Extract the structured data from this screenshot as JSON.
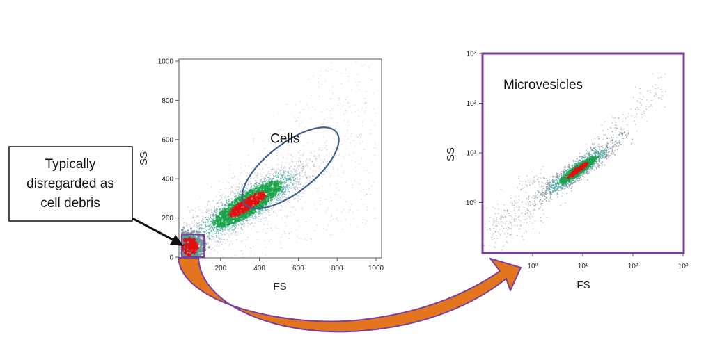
{
  "colors": {
    "gate_ellipse": "#3f5f8f",
    "gate_rect": "#7b3fa0",
    "frame_purple": "#7b3fa0",
    "arrow_fill": "#e2751e",
    "arrow_outline": "#7b3fa0",
    "density_low": "#7f8f9f",
    "density_mid": "#17a34a",
    "density_high": "#e00f0f"
  },
  "callout": {
    "lines": [
      "Typically",
      "disregarded as",
      "cell debris"
    ]
  },
  "chart_data": [
    {
      "type": "scatter",
      "title": "",
      "xlabel": "FS",
      "ylabel": "SS",
      "xlim": [
        0,
        1000
      ],
      "ylim": [
        0,
        1000
      ],
      "xticks": [
        "0",
        "200",
        "400",
        "600",
        "800",
        "1000"
      ],
      "yticks": [
        "0",
        "200",
        "400",
        "600",
        "800",
        "1000"
      ],
      "grid": false,
      "gates": [
        {
          "type": "ellipse",
          "label": "Cells",
          "center": [
            560,
            455
          ],
          "semi_axes": [
            300,
            125
          ],
          "rotation_deg": 38
        },
        {
          "type": "rectangle",
          "label": "",
          "x": [
            0,
            115
          ],
          "y": [
            0,
            115
          ]
        }
      ],
      "density_clusters": [
        {
          "center": [
            340,
            270
          ],
          "spread": [
            130,
            85
          ],
          "peak_color": "red"
        },
        {
          "center": [
            40,
            55
          ],
          "spread": [
            35,
            35
          ],
          "peak_color": "red"
        }
      ]
    },
    {
      "type": "scatter",
      "title": "Microvesicles",
      "xlabel": "FS",
      "ylabel": "SS",
      "xscale": "log",
      "yscale": "log",
      "xlim": [
        0.1,
        1000
      ],
      "ylim": [
        0.1,
        1000
      ],
      "xticks": [
        "10⁰",
        "10¹",
        "10²",
        "10³"
      ],
      "yticks": [
        "10⁰",
        "10¹",
        "10²",
        "10³"
      ],
      "grid": false,
      "density_clusters": [
        {
          "center": [
            8,
            4.5
          ],
          "spread_log": [
            0.35,
            0.25
          ],
          "peak_color": "red"
        },
        {
          "center": [
            0.4,
            0.5
          ],
          "spread_log": [
            0.4,
            0.4
          ],
          "peak_color": "gray"
        }
      ]
    }
  ]
}
